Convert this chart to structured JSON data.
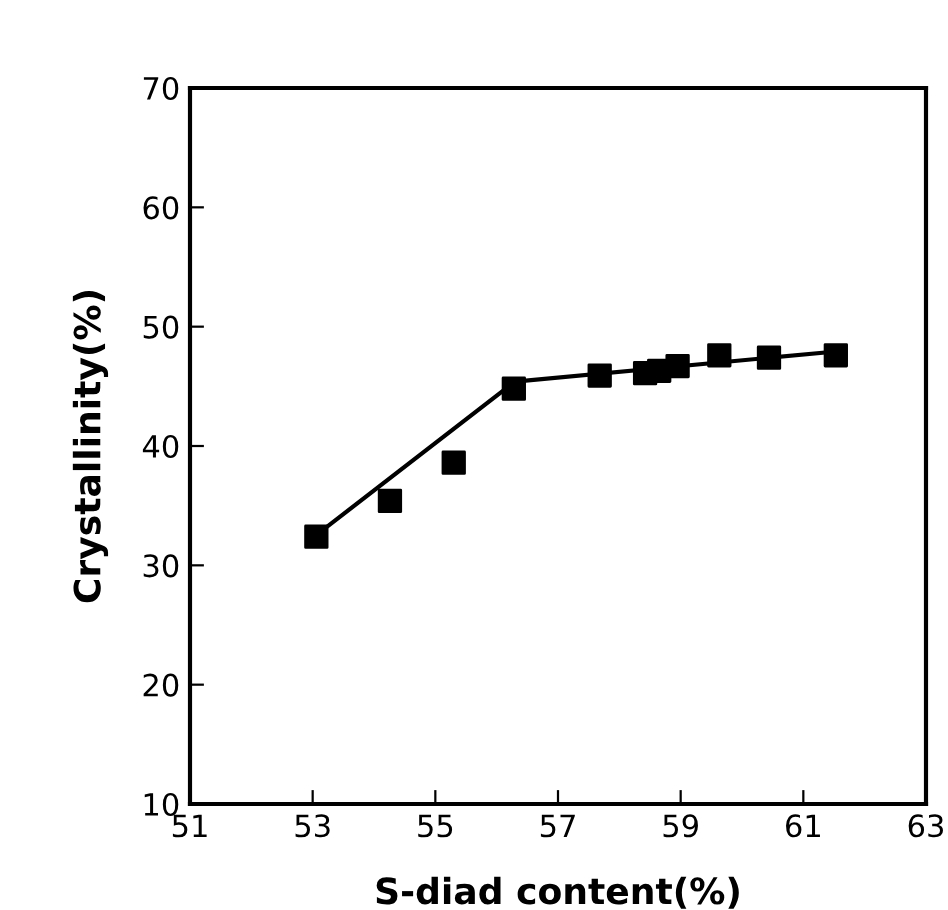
{
  "chart_data": {
    "type": "scatter",
    "xlabel": "S-diad content(%)",
    "ylabel": "Crystallinity(%)",
    "xlim": [
      51,
      63
    ],
    "xticks": [
      51,
      53,
      55,
      57,
      59,
      61,
      63
    ],
    "ylim": [
      10,
      70
    ],
    "yticks": [
      10,
      20,
      30,
      40,
      50,
      60,
      70
    ],
    "grid": false,
    "legend": false,
    "series": [
      {
        "color": "#000000",
        "marker": "square",
        "x": [
          53.06,
          54.26,
          55.3,
          56.28,
          57.68,
          58.42,
          58.65,
          58.95,
          59.63,
          60.44,
          61.53
        ],
        "values": [
          32.4,
          35.4,
          38.6,
          44.8,
          45.9,
          46.1,
          46.3,
          46.7,
          47.6,
          47.4,
          47.6
        ]
      },
      {
        "type": "line",
        "color": "#000000",
        "marker": "none",
        "line_style": "solid",
        "x": [
          53.2,
          56.3,
          61.5
        ],
        "values": [
          33.1,
          45.4,
          47.9
        ]
      }
    ]
  }
}
